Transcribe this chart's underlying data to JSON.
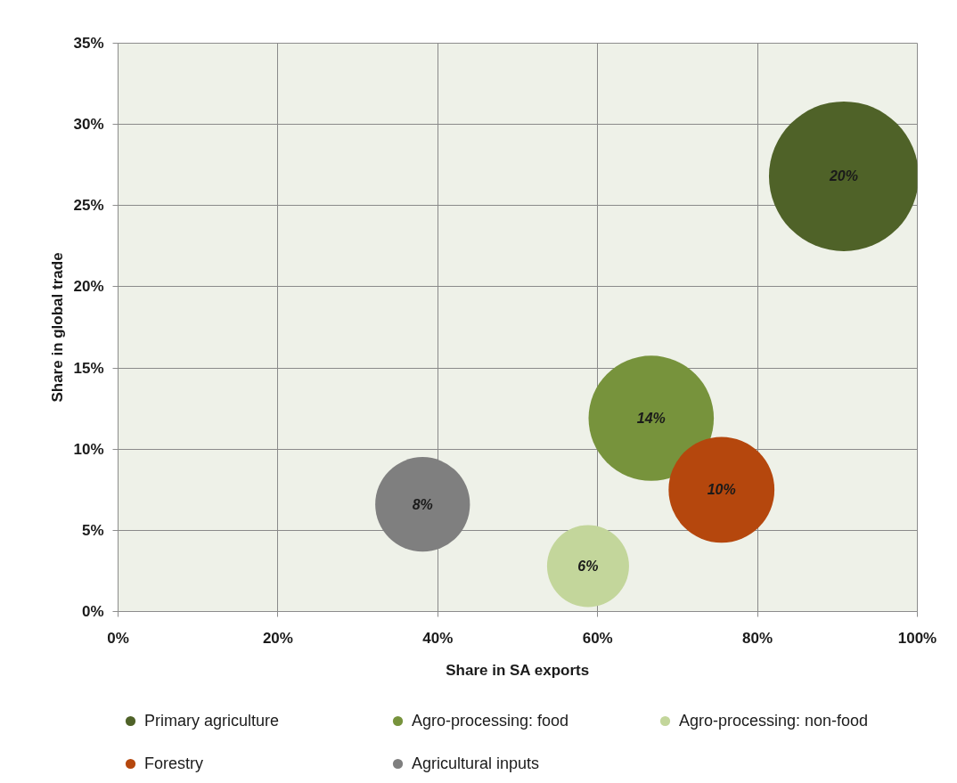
{
  "chart_data": {
    "type": "bubble",
    "xlabel": "Share in SA exports",
    "ylabel": "Share in global trade",
    "xlim": [
      0,
      100
    ],
    "ylim": [
      0,
      35
    ],
    "xticks": [
      {
        "value": 0,
        "label": "0%"
      },
      {
        "value": 20,
        "label": "20%"
      },
      {
        "value": 40,
        "label": "40%"
      },
      {
        "value": 60,
        "label": "60%"
      },
      {
        "value": 80,
        "label": "80%"
      },
      {
        "value": 100,
        "label": "100%"
      }
    ],
    "yticks": [
      {
        "value": 0,
        "label": "0%"
      },
      {
        "value": 5,
        "label": "5%"
      },
      {
        "value": 10,
        "label": "10%"
      },
      {
        "value": 15,
        "label": "15%"
      },
      {
        "value": 20,
        "label": "20%"
      },
      {
        "value": 25,
        "label": "25%"
      },
      {
        "value": 30,
        "label": "30%"
      },
      {
        "value": 35,
        "label": "35%"
      }
    ],
    "grid": true,
    "legend": "bottom",
    "series": [
      {
        "name": "Primary agriculture",
        "color": "#4f6228",
        "x": [
          90.8
        ],
        "values": [
          26.8
        ],
        "sizes": [
          20
        ],
        "value_labels": [
          "20%"
        ]
      },
      {
        "name": "Agro-processing: food",
        "color": "#77933c",
        "x": [
          66.7
        ],
        "values": [
          11.9
        ],
        "sizes": [
          14
        ],
        "value_labels": [
          "14%"
        ]
      },
      {
        "name": "Agro-processing: non-food",
        "color": "#c3d69b",
        "x": [
          58.8
        ],
        "values": [
          2.8
        ],
        "sizes": [
          6
        ],
        "value_labels": [
          "6%"
        ]
      },
      {
        "name": "Forestry",
        "color": "#b5470d",
        "x": [
          75.5
        ],
        "values": [
          7.5
        ],
        "sizes": [
          10
        ],
        "value_labels": [
          "10%"
        ]
      },
      {
        "name": "Agricultural inputs",
        "color": "#7f7f7f",
        "x": [
          38.1
        ],
        "values": [
          6.6
        ],
        "sizes": [
          8
        ],
        "value_labels": [
          "8%"
        ]
      }
    ]
  }
}
